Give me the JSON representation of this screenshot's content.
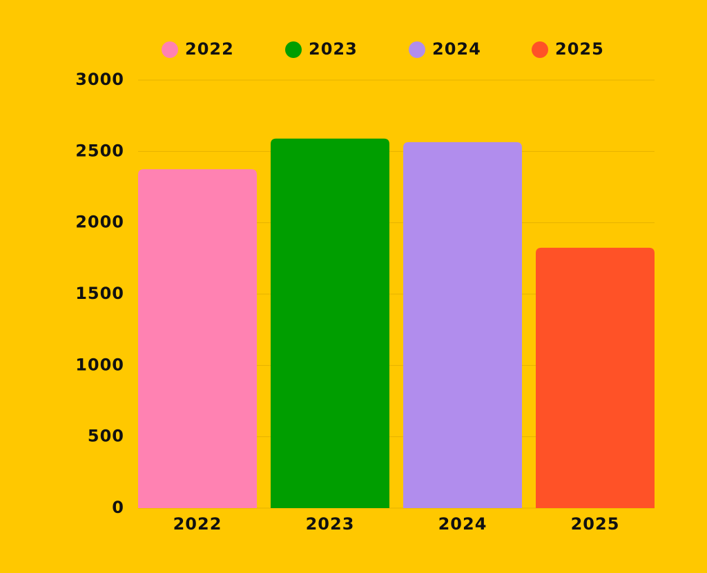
{
  "chart_data": {
    "type": "bar",
    "categories": [
      "2022",
      "2023",
      "2024",
      "2025"
    ],
    "values": [
      2375,
      2590,
      2565,
      1825
    ],
    "colors": [
      "#ff82b2",
      "#009e00",
      "#b18ded",
      "#ff5227"
    ],
    "ylim": [
      0,
      3000
    ],
    "yticks": [
      0,
      500,
      1000,
      1500,
      2000,
      2500,
      3000
    ],
    "grid": true,
    "legend": "top"
  }
}
